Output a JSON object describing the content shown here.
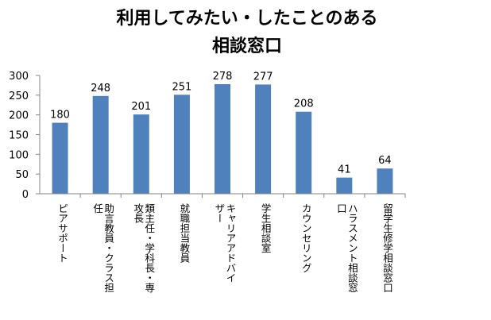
{
  "chart_data": {
    "type": "bar",
    "title": [
      "利用してみたい・したことのある",
      "相談窓口"
    ],
    "categories": [
      [
        "ピアサポート"
      ],
      [
        "助言教員・クラス担",
        "任"
      ],
      [
        "類主任・学科長・専",
        "攻長"
      ],
      [
        "就職担当教員"
      ],
      [
        "キャリアアドバイ",
        "ザー"
      ],
      [
        "学生相談室"
      ],
      [
        "カウンセリング"
      ],
      [
        "ハラスメント相談窓",
        "口"
      ],
      [
        "留学生修学相談窓口"
      ]
    ],
    "values": [
      180,
      248,
      201,
      251,
      278,
      277,
      208,
      41,
      64
    ],
    "ylim": [
      0,
      300
    ],
    "yticks": [
      0,
      50,
      100,
      150,
      200,
      250,
      300
    ],
    "bar_color": "#4f81bd",
    "grid": false,
    "legend": "none"
  }
}
